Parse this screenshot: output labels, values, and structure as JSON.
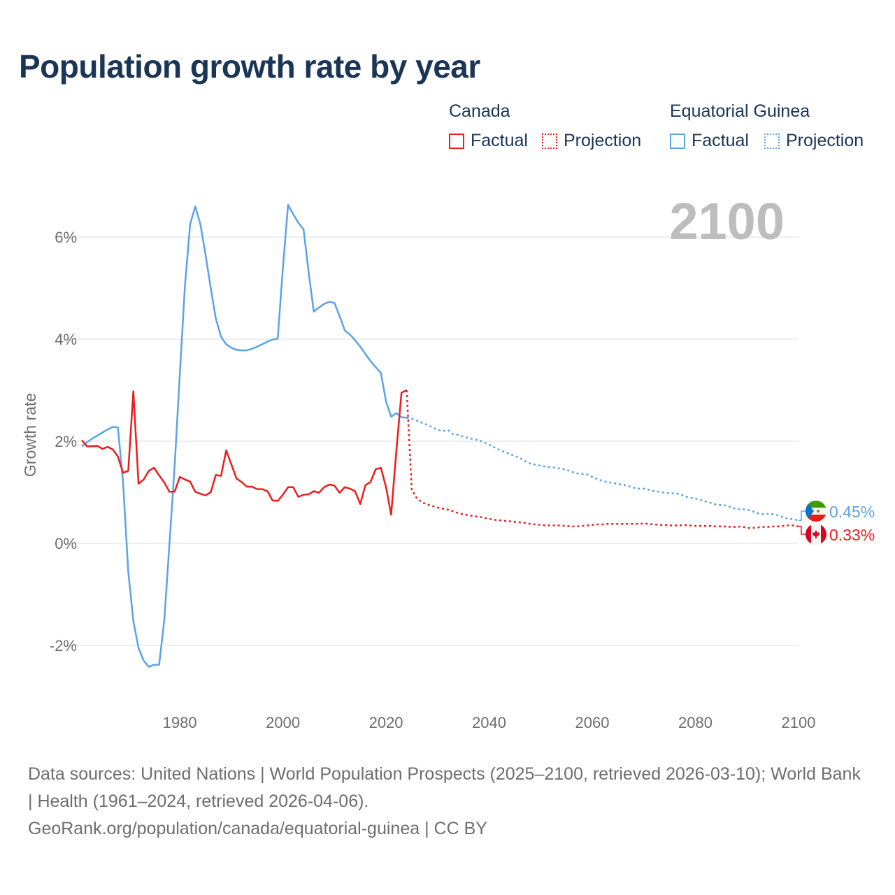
{
  "title": "Population growth rate by year",
  "legend": {
    "groups": [
      {
        "name": "Canada",
        "factual": "Factual",
        "projection": "Projection",
        "color": "#ee1c1c"
      },
      {
        "name": "Equatorial Guinea",
        "factual": "Factual",
        "projection": "Projection",
        "color": "#5ba3e6"
      }
    ]
  },
  "current_year_label": "2100",
  "footer": {
    "sources": "Data sources: United Nations | World Population Prospects (2025–2100, retrieved 2026-03-10); World Bank | Health (1961–2024, retrieved 2026-04-06).",
    "credit": "GeoRank.org/population/canada/equatorial-guinea | CC BY"
  },
  "chart_data": {
    "type": "line",
    "title": "Population growth rate by year",
    "xlabel": "",
    "ylabel": "Growth rate",
    "xlim": [
      1961,
      2100
    ],
    "ylim": [
      -2.9,
      7
    ],
    "x_ticks": [
      1980,
      2000,
      2020,
      2040,
      2060,
      2080,
      2100
    ],
    "y_ticks": [
      {
        "value": -2,
        "label": "-2%"
      },
      {
        "value": 0,
        "label": "0%"
      },
      {
        "value": 2,
        "label": "2%"
      },
      {
        "value": 4,
        "label": "4%"
      },
      {
        "value": 6,
        "label": "6%"
      }
    ],
    "grid": true,
    "legend_position": "top-right",
    "series": [
      {
        "name": "Canada",
        "color": "#ee1c1c",
        "end_label": "0.33%",
        "flag": "canada-flag",
        "factual": {
          "start_year": 1961,
          "values": [
            2.02,
            1.9,
            1.9,
            1.91,
            1.85,
            1.89,
            1.84,
            1.7,
            1.38,
            1.42,
            2.98,
            1.17,
            1.25,
            1.42,
            1.48,
            1.33,
            1.19,
            1.01,
            1.01,
            1.3,
            1.25,
            1.21,
            1.01,
            0.97,
            0.94,
            1.0,
            1.34,
            1.32,
            1.82,
            1.55,
            1.27,
            1.2,
            1.11,
            1.11,
            1.06,
            1.06,
            1.02,
            0.84,
            0.83,
            0.95,
            1.1,
            1.1,
            0.91,
            0.95,
            0.96,
            1.02,
            0.99,
            1.1,
            1.15,
            1.13,
            0.99,
            1.1,
            1.07,
            1.02,
            0.77,
            1.14,
            1.2,
            1.45,
            1.48,
            1.1,
            0.56,
            1.8,
            2.95,
            3.0
          ]
        },
        "projection": {
          "start_year": 2024,
          "values": [
            3.0,
            1.05,
            0.88,
            0.8,
            0.76,
            0.73,
            0.7,
            0.68,
            0.66,
            0.63,
            0.59,
            0.57,
            0.55,
            0.53,
            0.52,
            0.5,
            0.48,
            0.46,
            0.45,
            0.44,
            0.43,
            0.42,
            0.41,
            0.4,
            0.38,
            0.37,
            0.36,
            0.35,
            0.35,
            0.35,
            0.35,
            0.34,
            0.33,
            0.33,
            0.34,
            0.35,
            0.36,
            0.37,
            0.37,
            0.38,
            0.38,
            0.38,
            0.38,
            0.38,
            0.38,
            0.38,
            0.39,
            0.38,
            0.37,
            0.36,
            0.36,
            0.35,
            0.35,
            0.35,
            0.36,
            0.35,
            0.34,
            0.34,
            0.34,
            0.34,
            0.33,
            0.33,
            0.33,
            0.32,
            0.32,
            0.33,
            0.3,
            0.3,
            0.31,
            0.32,
            0.32,
            0.33,
            0.33,
            0.34,
            0.35,
            0.35,
            0.33
          ]
        }
      },
      {
        "name": "Equatorial Guinea",
        "color": "#5ba3e6",
        "end_label": "0.45%",
        "flag": "equatorial-guinea-flag",
        "factual": {
          "start_year": 1961,
          "values": [
            1.9,
            1.98,
            2.05,
            2.11,
            2.17,
            2.23,
            2.28,
            2.27,
            1.2,
            -0.55,
            -1.52,
            -2.05,
            -2.3,
            -2.42,
            -2.38,
            -2.38,
            -1.5,
            0.0,
            1.5,
            3.3,
            5.05,
            6.25,
            6.6,
            6.25,
            5.65,
            5.0,
            4.4,
            4.05,
            3.9,
            3.83,
            3.79,
            3.78,
            3.78,
            3.81,
            3.85,
            3.9,
            3.95,
            3.99,
            4.01,
            5.4,
            6.63,
            6.45,
            6.28,
            6.15,
            5.3,
            4.54,
            4.62,
            4.69,
            4.73,
            4.71,
            4.45,
            4.17,
            4.09,
            3.98,
            3.85,
            3.71,
            3.57,
            3.45,
            3.34,
            2.78,
            2.48,
            2.55,
            2.47,
            2.46
          ]
        },
        "projection": {
          "start_year": 2024,
          "values": [
            2.46,
            2.44,
            2.4,
            2.36,
            2.32,
            2.27,
            2.22,
            2.2,
            2.22,
            2.14,
            2.12,
            2.09,
            2.06,
            2.04,
            2.02,
            1.98,
            1.93,
            1.88,
            1.83,
            1.79,
            1.75,
            1.71,
            1.67,
            1.61,
            1.56,
            1.54,
            1.52,
            1.5,
            1.49,
            1.48,
            1.46,
            1.44,
            1.4,
            1.37,
            1.36,
            1.35,
            1.3,
            1.26,
            1.22,
            1.2,
            1.18,
            1.16,
            1.15,
            1.12,
            1.09,
            1.07,
            1.07,
            1.05,
            1.02,
            1.01,
            0.99,
            0.98,
            0.98,
            0.96,
            0.92,
            0.89,
            0.88,
            0.85,
            0.82,
            0.79,
            0.76,
            0.75,
            0.74,
            0.7,
            0.67,
            0.67,
            0.66,
            0.63,
            0.59,
            0.57,
            0.58,
            0.57,
            0.55,
            0.51,
            0.48,
            0.47,
            0.45
          ]
        }
      }
    ]
  }
}
